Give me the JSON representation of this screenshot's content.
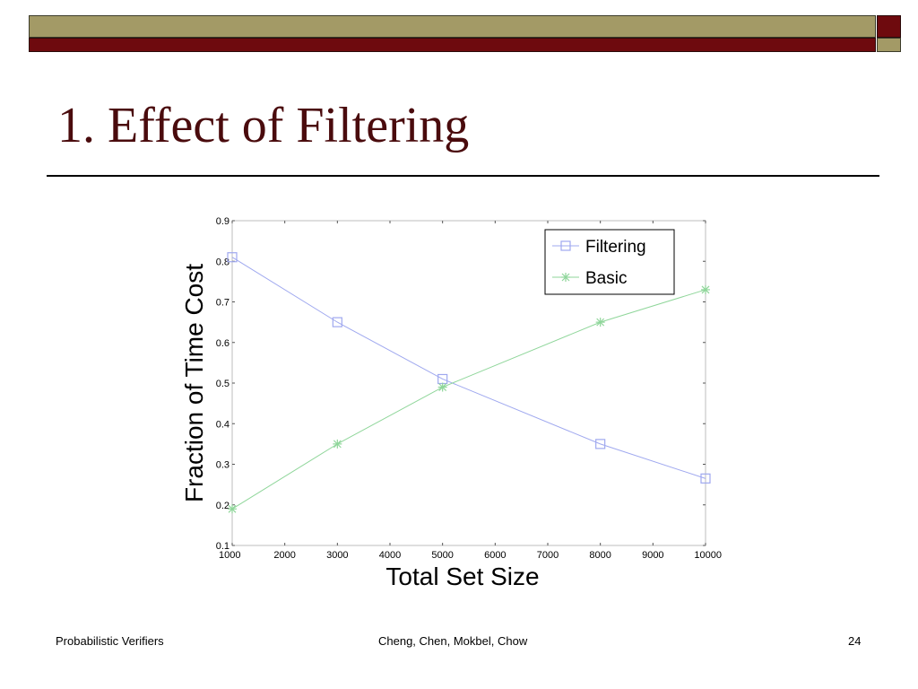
{
  "slide": {
    "title": "1. Effect of Filtering",
    "footer_left": "Probabilistic Verifiers",
    "footer_center": "Cheng, Chen, Mokbel, Chow",
    "page_number": "24"
  },
  "theme": {
    "olive": "#a39a66",
    "maroon": "#6e0a0e",
    "title_color": "#4a0b0d"
  },
  "chart_data": {
    "type": "line",
    "xlabel": "Total Set Size",
    "ylabel": "Fraction of Time Cost",
    "xlim": [
      1000,
      10000
    ],
    "ylim": [
      0.1,
      0.9
    ],
    "xticks": [
      "1000",
      "2000",
      "3000",
      "4000",
      "5000",
      "6000",
      "7000",
      "8000",
      "9000",
      "10000"
    ],
    "yticks": [
      "0.1",
      "0.2",
      "0.3",
      "0.4",
      "0.5",
      "0.6",
      "0.7",
      "0.8",
      "0.9"
    ],
    "legend_position": "top-right",
    "grid": false,
    "x": [
      1000,
      3000,
      5000,
      8000,
      10000
    ],
    "series": [
      {
        "name": "Filtering",
        "marker": "square",
        "color": "#9fa8ef",
        "values": [
          0.81,
          0.65,
          0.51,
          0.35,
          0.265
        ]
      },
      {
        "name": "Basic",
        "marker": "star",
        "color": "#8fd69a",
        "values": [
          0.19,
          0.35,
          0.49,
          0.65,
          0.73
        ]
      }
    ]
  }
}
